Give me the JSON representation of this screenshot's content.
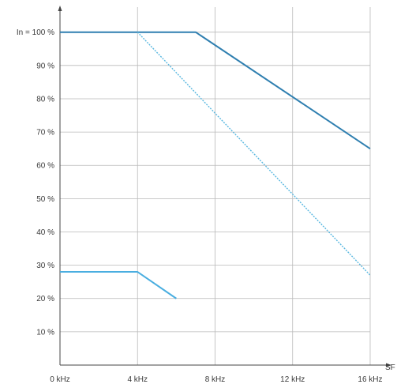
{
  "chart_data": {
    "type": "line",
    "title": "",
    "xlabel": "SF",
    "ylabel": "",
    "x_ticks": [
      {
        "value": 0,
        "label": "0 kHz"
      },
      {
        "value": 4,
        "label": "4 kHz"
      },
      {
        "value": 8,
        "label": "8 kHz"
      },
      {
        "value": 12,
        "label": "12 kHz"
      },
      {
        "value": 16,
        "label": "16 kHz"
      }
    ],
    "y_ticks": [
      {
        "value": 10,
        "label": "10 %"
      },
      {
        "value": 20,
        "label": "20 %"
      },
      {
        "value": 30,
        "label": "30 %"
      },
      {
        "value": 40,
        "label": "40 %"
      },
      {
        "value": 50,
        "label": "50 %"
      },
      {
        "value": 60,
        "label": "60 %"
      },
      {
        "value": 70,
        "label": "70 %"
      },
      {
        "value": 80,
        "label": "80 %"
      },
      {
        "value": 90,
        "label": "90 %"
      },
      {
        "value": 100,
        "label": "In = 100 %"
      }
    ],
    "xlim": [
      0,
      17.1
    ],
    "ylim": [
      0,
      108
    ],
    "grid": true,
    "series": [
      {
        "style": "solid",
        "color": "#2f7fb0",
        "x": [
          0,
          7,
          16
        ],
        "y": [
          100,
          100,
          65
        ]
      },
      {
        "style": "dashed",
        "color": "#5ab8e0",
        "x": [
          4,
          16
        ],
        "y": [
          100,
          27
        ]
      },
      {
        "style": "solid",
        "color": "#4aaee0",
        "x": [
          0,
          4,
          6
        ],
        "y": [
          28,
          28,
          20
        ]
      }
    ],
    "colors": {
      "grid": "#b9b9b9",
      "axis": "#444444",
      "text": "#3a3a3a"
    }
  }
}
